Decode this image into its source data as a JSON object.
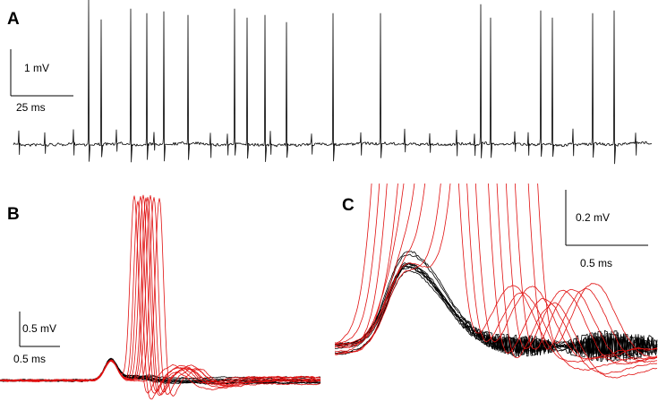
{
  "panels": [
    {
      "label": "A",
      "scale_bar": {
        "y_label": "1 mV",
        "x_label": "25 ms"
      }
    },
    {
      "label": "B",
      "scale_bar": {
        "y_label": "0.5 mV",
        "x_label": "0.5 ms"
      }
    },
    {
      "label": "C",
      "scale_bar": {
        "y_label": "0.2 mV",
        "x_label": "0.5 ms"
      }
    }
  ]
}
